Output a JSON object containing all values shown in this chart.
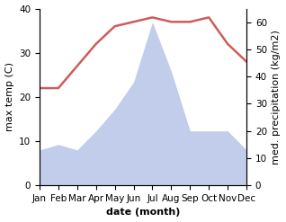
{
  "months": [
    "Jan",
    "Feb",
    "Mar",
    "Apr",
    "May",
    "Jun",
    "Jul",
    "Aug",
    "Sep",
    "Oct",
    "Nov",
    "Dec"
  ],
  "temperature": [
    22,
    22,
    27,
    32,
    36,
    37,
    38,
    37,
    37,
    38,
    32,
    28
  ],
  "precipitation": [
    13,
    15,
    13,
    20,
    28,
    38,
    60,
    42,
    20,
    20,
    20,
    13
  ],
  "temp_color": "#cd5c5c",
  "precip_color": "#b8c4e8",
  "temp_ylim": [
    0,
    40
  ],
  "precip_ylim": [
    0,
    65
  ],
  "xlabel": "date (month)",
  "ylabel_left": "max temp (C)",
  "ylabel_right": "med. precipitation (kg/m2)",
  "label_fontsize": 8,
  "tick_fontsize": 7.5
}
